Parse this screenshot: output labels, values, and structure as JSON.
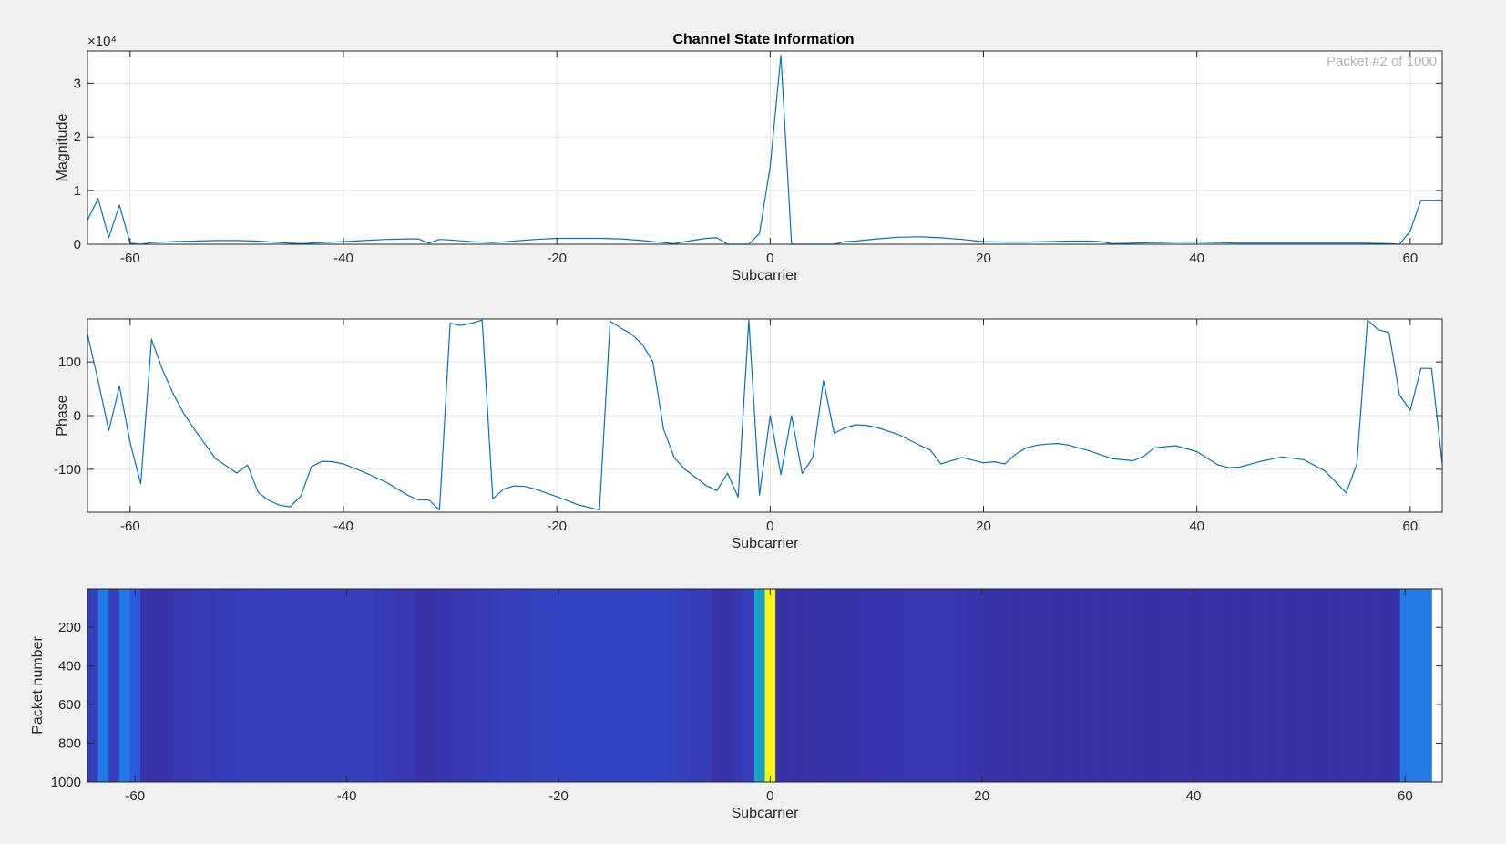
{
  "figure": {
    "title": "Channel State Information",
    "packet_label": "Packet #2 of 1000"
  },
  "colors": {
    "line": "#0072BD",
    "axes_bg": "#ffffff",
    "grid": "#e3e3e3",
    "figure_bg": "#f0f0f0",
    "colormap": "parula"
  },
  "chart_data": [
    {
      "type": "line",
      "name": "magnitude-plot",
      "title": "Channel State Information",
      "annotation": "Packet #2 of 1000",
      "xlabel": "Subcarrier",
      "ylabel": "Magnitude",
      "y_exponent_label": "×10⁴",
      "xlim": [
        -64,
        63
      ],
      "ylim": [
        0,
        3.6
      ],
      "xticks": [
        -60,
        -40,
        -20,
        0,
        20,
        40,
        60
      ],
      "yticks": [
        0,
        1,
        2,
        3
      ],
      "grid": true,
      "x": [
        -64,
        -63,
        -62,
        -61,
        -60,
        -59,
        -58,
        -56,
        -54,
        -52,
        -50,
        -48,
        -46,
        -44,
        -42,
        -40,
        -38,
        -36,
        -34,
        -33,
        -32,
        -31,
        -30,
        -28,
        -26,
        -24,
        -22,
        -20,
        -18,
        -16,
        -14,
        -12,
        -10,
        -9,
        -8,
        -6,
        -5,
        -4,
        -2,
        -1,
        0,
        1,
        2,
        3,
        4,
        5,
        6,
        7,
        8,
        10,
        12,
        14,
        16,
        18,
        20,
        22,
        24,
        26,
        28,
        30,
        31,
        32,
        34,
        36,
        38,
        40,
        42,
        44,
        46,
        48,
        50,
        52,
        54,
        56,
        58,
        59,
        60,
        61,
        62,
        63
      ],
      "y": [
        0.45,
        0.85,
        0.12,
        0.73,
        0.02,
        0.0,
        0.03,
        0.05,
        0.06,
        0.07,
        0.07,
        0.06,
        0.03,
        0.01,
        0.03,
        0.05,
        0.07,
        0.09,
        0.1,
        0.1,
        0.02,
        0.09,
        0.08,
        0.05,
        0.03,
        0.06,
        0.09,
        0.11,
        0.11,
        0.11,
        0.1,
        0.07,
        0.03,
        0.01,
        0.05,
        0.11,
        0.12,
        0.0,
        0.0,
        0.2,
        1.45,
        3.52,
        0.0,
        0.0,
        0.0,
        0.0,
        0.0,
        0.05,
        0.06,
        0.1,
        0.13,
        0.14,
        0.12,
        0.09,
        0.05,
        0.04,
        0.04,
        0.05,
        0.06,
        0.06,
        0.05,
        0.01,
        0.02,
        0.03,
        0.04,
        0.04,
        0.03,
        0.02,
        0.02,
        0.02,
        0.02,
        0.02,
        0.02,
        0.02,
        0.01,
        0.0,
        0.25,
        0.82,
        0.82,
        0.82
      ]
    },
    {
      "type": "line",
      "name": "phase-plot",
      "xlabel": "Subcarrier",
      "ylabel": "Phase",
      "xlim": [
        -64,
        63
      ],
      "ylim": [
        -180,
        180
      ],
      "xticks": [
        -60,
        -40,
        -20,
        0,
        20,
        40,
        60
      ],
      "yticks": [
        -100,
        0,
        100
      ],
      "grid": true,
      "x": [
        -64,
        -63,
        -62,
        -61,
        -60,
        -59,
        -58,
        -57,
        -56,
        -55,
        -54,
        -52,
        -50,
        -49,
        -48,
        -47,
        -46,
        -45,
        -44,
        -43,
        -42,
        -41,
        -40,
        -38,
        -36,
        -34,
        -33,
        -32,
        -31,
        -30,
        -29,
        -28,
        -27,
        -26,
        -25,
        -24,
        -23,
        -22,
        -20,
        -18,
        -16,
        -15,
        -14,
        -13,
        -12,
        -11,
        -10,
        -9,
        -8,
        -7,
        -6,
        -5,
        -4,
        -3,
        -2,
        -1,
        0,
        1,
        2,
        3,
        4,
        5,
        6,
        7,
        8,
        9,
        10,
        12,
        14,
        15,
        16,
        18,
        20,
        21,
        22,
        23,
        24,
        25,
        26,
        27,
        28,
        30,
        32,
        34,
        35,
        36,
        38,
        40,
        42,
        43,
        44,
        46,
        48,
        50,
        52,
        54,
        55,
        56,
        57,
        58,
        59,
        60,
        61,
        62,
        63
      ],
      "y": [
        152,
        65,
        -28,
        55,
        -50,
        -127,
        142,
        87,
        42,
        5,
        -25,
        -80,
        -107,
        -92,
        -143,
        -158,
        -167,
        -170,
        -150,
        -95,
        -85,
        -86,
        -90,
        -106,
        -124,
        -148,
        -157,
        -157,
        -176,
        172,
        168,
        172,
        178,
        -155,
        -137,
        -131,
        -132,
        -137,
        -151,
        -166,
        -176,
        176,
        163,
        152,
        133,
        100,
        -25,
        -78,
        -100,
        -115,
        -130,
        -140,
        -107,
        -152,
        178,
        -148,
        0,
        -110,
        0,
        -108,
        -78,
        65,
        -33,
        -23,
        -17,
        -18,
        -22,
        -35,
        -55,
        -64,
        -90,
        -78,
        -88,
        -86,
        -90,
        -72,
        -60,
        -55,
        -53,
        -52,
        -55,
        -66,
        -80,
        -84,
        -76,
        -60,
        -56,
        -67,
        -92,
        -97,
        -96,
        -85,
        -77,
        -82,
        -103,
        -144,
        -90,
        178,
        160,
        155,
        38,
        10,
        88,
        88,
        -90
      ]
    },
    {
      "type": "heatmap",
      "name": "csi-heatmap",
      "xlabel": "Subcarrier",
      "ylabel": "Packet number",
      "xlim": [
        -64.5,
        63.5
      ],
      "ylim": [
        1,
        1000
      ],
      "xticks": [
        -60,
        -40,
        -20,
        0,
        20,
        40,
        60
      ],
      "yticks": [
        200,
        400,
        600,
        800,
        1000
      ],
      "y_reversed": true,
      "colormap": "parula",
      "clim": [
        0,
        3.6
      ],
      "subcarriers": [
        -64,
        63
      ],
      "column_levels": [
        0.3,
        0.82,
        0.3,
        0.8,
        0.45,
        0.2,
        0.22,
        0.22,
        0.25,
        0.25,
        0.26,
        0.26,
        0.28,
        0.28,
        0.3,
        0.3,
        0.3,
        0.3,
        0.3,
        0.3,
        0.3,
        0.3,
        0.3,
        0.3,
        0.3,
        0.3,
        0.3,
        0.28,
        0.26,
        0.25,
        0.25,
        0.22,
        0.2,
        0.24,
        0.25,
        0.25,
        0.26,
        0.26,
        0.28,
        0.3,
        0.3,
        0.3,
        0.31,
        0.31,
        0.32,
        0.32,
        0.32,
        0.33,
        0.33,
        0.33,
        0.33,
        0.33,
        0.33,
        0.33,
        0.32,
        0.31,
        0.3,
        0.28,
        0.27,
        0.2,
        0.22,
        0.25,
        0.3,
        1.45,
        3.52,
        0.2,
        0.2,
        0.2,
        0.2,
        0.22,
        0.22,
        0.22,
        0.22,
        0.23,
        0.23,
        0.24,
        0.24,
        0.25,
        0.25,
        0.25,
        0.25,
        0.25,
        0.24,
        0.23,
        0.22,
        0.22,
        0.21,
        0.2,
        0.2,
        0.2,
        0.2,
        0.2,
        0.2,
        0.2,
        0.2,
        0.2,
        0.2,
        0.2,
        0.2,
        0.2,
        0.2,
        0.2,
        0.2,
        0.2,
        0.2,
        0.2,
        0.2,
        0.2,
        0.2,
        0.2,
        0.2,
        0.2,
        0.2,
        0.2,
        0.2,
        0.2,
        0.2,
        0.2,
        0.2,
        0.2,
        0.2,
        0.2,
        0.2,
        0.2,
        0.82,
        0.82,
        0.82
      ]
    }
  ]
}
